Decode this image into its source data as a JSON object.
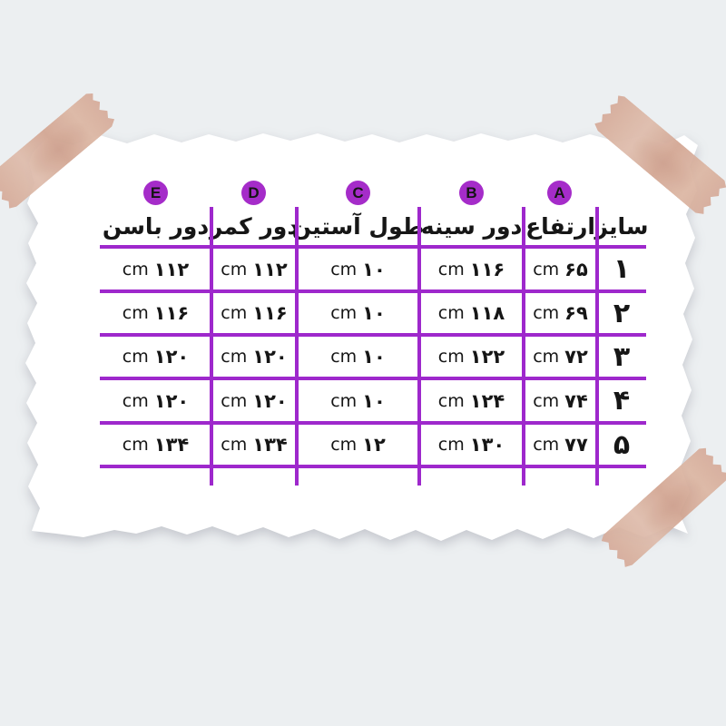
{
  "colors": {
    "background": "#eceff1",
    "paper": "#ffffff",
    "grid_line": "#9e28cc",
    "badge_fill": "#a52cc9",
    "badge_letter": "#141414",
    "text": "#161616",
    "tape": "#d8ae9c"
  },
  "table": {
    "unit": "cm",
    "columns": [
      {
        "label": "سایز",
        "badge": ""
      },
      {
        "label": "ارتفاع",
        "badge": "A"
      },
      {
        "label": "دور سینه",
        "badge": "B"
      },
      {
        "label": "طول آستین",
        "badge": "C"
      },
      {
        "label": "دور کمر",
        "badge": "D"
      },
      {
        "label": "دور باسن",
        "badge": "E"
      }
    ],
    "rows": [
      {
        "size": "۱",
        "height": "۶۵",
        "chest": "۱۱۶",
        "sleeve": "۱۰",
        "waist": "۱۱۲",
        "hip": "۱۱۲"
      },
      {
        "size": "۲",
        "height": "۶۹",
        "chest": "۱۱۸",
        "sleeve": "۱۰",
        "waist": "۱۱۶",
        "hip": "۱۱۶"
      },
      {
        "size": "۳",
        "height": "۷۲",
        "chest": "۱۲۲",
        "sleeve": "۱۰",
        "waist": "۱۲۰",
        "hip": "۱۲۰"
      },
      {
        "size": "۴",
        "height": "۷۴",
        "chest": "۱۲۴",
        "sleeve": "۱۰",
        "waist": "۱۲۰",
        "hip": "۱۲۰"
      },
      {
        "size": "۵",
        "height": "۷۷",
        "chest": "۱۳۰",
        "sleeve": "۱۲",
        "waist": "۱۳۴",
        "hip": "۱۳۴"
      }
    ]
  }
}
